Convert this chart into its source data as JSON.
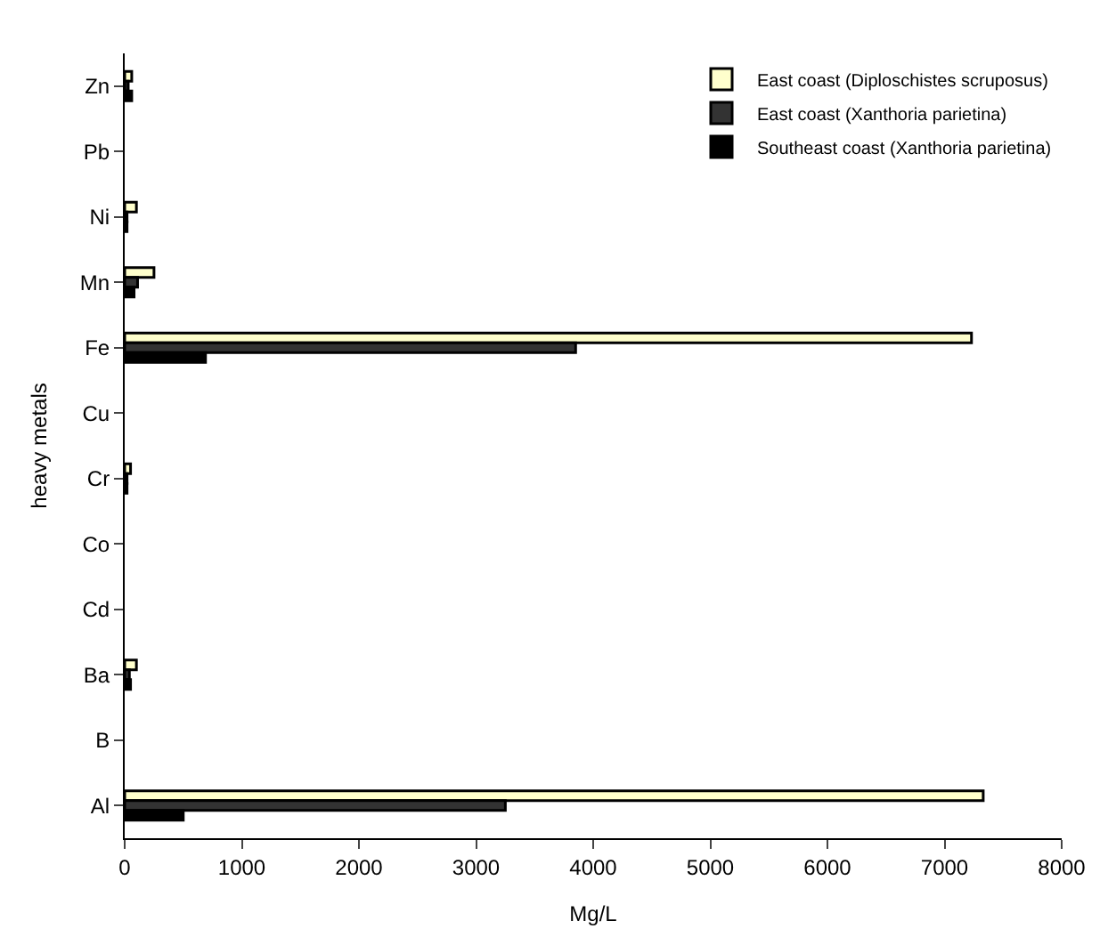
{
  "chart_data": {
    "type": "bar",
    "orientation": "horizontal",
    "xlabel": "Mg/L",
    "ylabel": "heavy metals",
    "categories": [
      "Zn",
      "Pb",
      "Ni",
      "Mn",
      "Fe",
      "Cu",
      "Cr",
      "Co",
      "Cd",
      "Ba",
      "B",
      "Al"
    ],
    "series": [
      {
        "name": "East coast (Diploschistes scruposus)",
        "color": "#ffffcc",
        "values": [
          60,
          null,
          100,
          250,
          7230,
          null,
          50,
          null,
          null,
          100,
          null,
          7330
        ]
      },
      {
        "name": "East coast (Xanthoria parietina)",
        "color": "#333333",
        "values": [
          30,
          null,
          20,
          110,
          3850,
          null,
          20,
          null,
          null,
          40,
          null,
          3250
        ]
      },
      {
        "name": "Southeast coast (Xanthoria parietina)",
        "color": "#000000",
        "values": [
          60,
          null,
          20,
          80,
          690,
          null,
          20,
          null,
          null,
          50,
          null,
          500
        ]
      }
    ],
    "xlim": [
      0,
      8000
    ],
    "xticks": [
      0,
      1000,
      2000,
      3000,
      4000,
      5000,
      6000,
      7000,
      8000
    ],
    "legend": "top right"
  }
}
